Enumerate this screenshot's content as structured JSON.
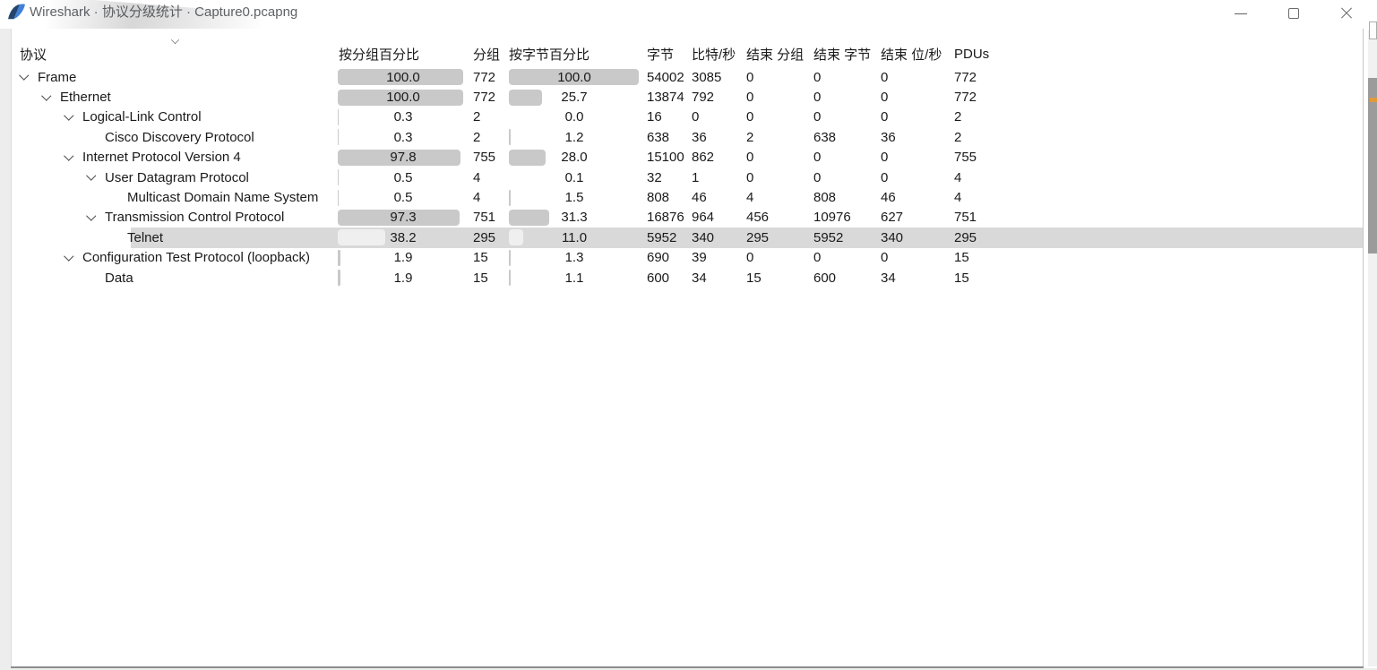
{
  "window": {
    "title": "Wireshark · 协议分级统计 · Capture0.pcapng",
    "controls": {
      "minimize": "minimize",
      "maximize": "maximize",
      "close": "close"
    }
  },
  "table": {
    "columns": [
      {
        "key": "protocol",
        "label": "协议",
        "sorted": true,
        "sort_direction": "descending"
      },
      {
        "key": "pct_packets",
        "label": "按分组百分比"
      },
      {
        "key": "packets",
        "label": "分组"
      },
      {
        "key": "pct_bytes",
        "label": "按字节百分比"
      },
      {
        "key": "bytes",
        "label": "字节"
      },
      {
        "key": "bits_s",
        "label": "比特/秒"
      },
      {
        "key": "end_packets",
        "label": "结束 分组"
      },
      {
        "key": "end_bytes",
        "label": "结束 字节"
      },
      {
        "key": "end_bits_s",
        "label": "结束 位/秒"
      },
      {
        "key": "pdus",
        "label": "PDUs"
      }
    ],
    "rows": [
      {
        "protocol": "Frame",
        "level": 0,
        "expandable": true,
        "selected": false,
        "pct_packets": "100.0",
        "packets": "772",
        "pct_bytes": "100.0",
        "bytes": "54002",
        "bits_s": "3085",
        "end_packets": "0",
        "end_bytes": "0",
        "end_bits_s": "0",
        "pdus": "772"
      },
      {
        "protocol": "Ethernet",
        "level": 1,
        "expandable": true,
        "selected": false,
        "pct_packets": "100.0",
        "packets": "772",
        "pct_bytes": "25.7",
        "bytes": "13874",
        "bits_s": "792",
        "end_packets": "0",
        "end_bytes": "0",
        "end_bits_s": "0",
        "pdus": "772"
      },
      {
        "protocol": "Logical-Link Control",
        "level": 2,
        "expandable": true,
        "selected": false,
        "pct_packets": "0.3",
        "packets": "2",
        "pct_bytes": "0.0",
        "bytes": "16",
        "bits_s": "0",
        "end_packets": "0",
        "end_bytes": "0",
        "end_bits_s": "0",
        "pdus": "2"
      },
      {
        "protocol": "Cisco Discovery Protocol",
        "level": 3,
        "expandable": false,
        "selected": false,
        "pct_packets": "0.3",
        "packets": "2",
        "pct_bytes": "1.2",
        "bytes": "638",
        "bits_s": "36",
        "end_packets": "2",
        "end_bytes": "638",
        "end_bits_s": "36",
        "pdus": "2"
      },
      {
        "protocol": "Internet Protocol Version 4",
        "level": 2,
        "expandable": true,
        "selected": false,
        "pct_packets": "97.8",
        "packets": "755",
        "pct_bytes": "28.0",
        "bytes": "15100",
        "bits_s": "862",
        "end_packets": "0",
        "end_bytes": "0",
        "end_bits_s": "0",
        "pdus": "755"
      },
      {
        "protocol": "User Datagram Protocol",
        "level": 3,
        "expandable": true,
        "selected": false,
        "pct_packets": "0.5",
        "packets": "4",
        "pct_bytes": "0.1",
        "bytes": "32",
        "bits_s": "1",
        "end_packets": "0",
        "end_bytes": "0",
        "end_bits_s": "0",
        "pdus": "4"
      },
      {
        "protocol": "Multicast Domain Name System",
        "level": 4,
        "expandable": false,
        "selected": false,
        "pct_packets": "0.5",
        "packets": "4",
        "pct_bytes": "1.5",
        "bytes": "808",
        "bits_s": "46",
        "end_packets": "4",
        "end_bytes": "808",
        "end_bits_s": "46",
        "pdus": "4"
      },
      {
        "protocol": "Transmission Control Protocol",
        "level": 3,
        "expandable": true,
        "selected": false,
        "pct_packets": "97.3",
        "packets": "751",
        "pct_bytes": "31.3",
        "bytes": "16876",
        "bits_s": "964",
        "end_packets": "456",
        "end_bytes": "10976",
        "end_bits_s": "627",
        "pdus": "751"
      },
      {
        "protocol": "Telnet",
        "level": 4,
        "expandable": false,
        "selected": true,
        "pct_packets": "38.2",
        "packets": "295",
        "pct_bytes": "11.0",
        "bytes": "5952",
        "bits_s": "340",
        "end_packets": "295",
        "end_bytes": "5952",
        "end_bits_s": "340",
        "pdus": "295"
      },
      {
        "protocol": "Configuration Test Protocol (loopback)",
        "level": 2,
        "expandable": true,
        "selected": false,
        "pct_packets": "1.9",
        "packets": "15",
        "pct_bytes": "1.3",
        "bytes": "690",
        "bits_s": "39",
        "end_packets": "0",
        "end_bytes": "0",
        "end_bits_s": "0",
        "pdus": "15"
      },
      {
        "protocol": "Data",
        "level": 3,
        "expandable": false,
        "selected": false,
        "pct_packets": "1.9",
        "packets": "15",
        "pct_bytes": "1.1",
        "bytes": "600",
        "bits_s": "34",
        "end_packets": "15",
        "end_bytes": "600",
        "end_bits_s": "34",
        "pdus": "15"
      }
    ]
  },
  "colors": {
    "bar": "#c9c9c9",
    "bar_selected": "#efefef",
    "selection_background": "#d9d9d9",
    "scrollbar_thumb": "#9b9b9b",
    "scrollbar_mark": "#e09a3c",
    "title_text": "#5f6368",
    "accent_icon_blue": "#3f81d9"
  }
}
